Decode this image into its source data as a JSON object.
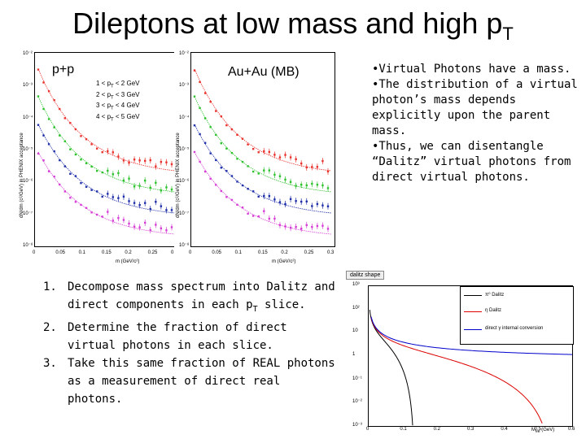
{
  "title": {
    "main": "Dileptons at low mass and high p",
    "sub": "T"
  },
  "left_panel": {
    "label": "p+p",
    "legend": [
      "1 < p",
      "2 < p",
      "3 < p",
      "4 < p"
    ],
    "legend_suffix": [
      " < 2 GeV",
      " < 3 GeV",
      " < 4 GeV",
      " < 5 GeV"
    ],
    "legend_sub": "T",
    "ylabel": "dN/dm",
    "ylabel_rest": " (c²/GeV) in PHENIX acceptance",
    "xlabel": "m",
    "xlabel_rest": " (GeV/c²)",
    "yticks": [
      "10⁻²",
      "10⁻³",
      "10⁻⁴",
      "10⁻⁵",
      "10⁻⁶",
      "10⁻⁷",
      "10⁻⁸"
    ],
    "xticks": [
      "0",
      "0.05",
      "0.1",
      "0.15",
      "0.2",
      "0.25",
      "0.3"
    ]
  },
  "right_panel": {
    "label": "Au+Au (MB)",
    "ylabel": "dN/dm",
    "ylabel_rest": " (c²/GeV) in PHENIX acceptance",
    "xlabel": "m",
    "xlabel_rest": " (GeV/c²)",
    "yticks": [
      "10⁻²",
      "10⁻³",
      "10⁻⁴",
      "10⁻⁵",
      "10⁻⁶",
      "10⁻⁷",
      "10⁻⁸"
    ],
    "xticks": [
      "0",
      "0.05",
      "0.1",
      "0.15",
      "0.2",
      "0.25",
      "0.3"
    ]
  },
  "colors": {
    "red": "#e8332e",
    "green": "#2fc22f",
    "blue": "#1f2fa8",
    "magenta": "#d63fd6"
  },
  "bullets": [
    "•Virtual Photons have a mass.",
    "•The distribution of a virtual photon’s mass depends explicitly upon the parent mass.",
    "•Thus, we can disentangle “Dalitz” virtual photons from direct virtual photons."
  ],
  "steps": [
    {
      "num": "1.",
      "text_a": "Decompose mass spectrum into Dalitz and direct components in each p",
      "sub": "T",
      "text_b": " slice."
    },
    {
      "num": "2.",
      "text_a": "Determine the fraction of direct virtual photons in each slice.",
      "sub": "",
      "text_b": ""
    },
    {
      "num": "3.",
      "text_a": "Take this same fraction of REAL photons as a measurement of direct real photons.",
      "sub": "",
      "text_b": ""
    }
  ],
  "dalitz": {
    "tab": "dalitz shape",
    "legend": [
      "π⁰ Dalitz",
      "η Dalitz",
      "direct γ internal conversion"
    ],
    "yticks": [
      "10³",
      "10²",
      "10",
      "1",
      "10⁻¹",
      "10⁻²",
      "10⁻³"
    ],
    "xticks": [
      "0",
      "0.1",
      "0.2",
      "0.3",
      "0.4",
      "0.5",
      "0.6"
    ],
    "xlabel": "M",
    "xlabel_sub": "ee",
    "xlabel_rest": " (GeV)"
  }
}
